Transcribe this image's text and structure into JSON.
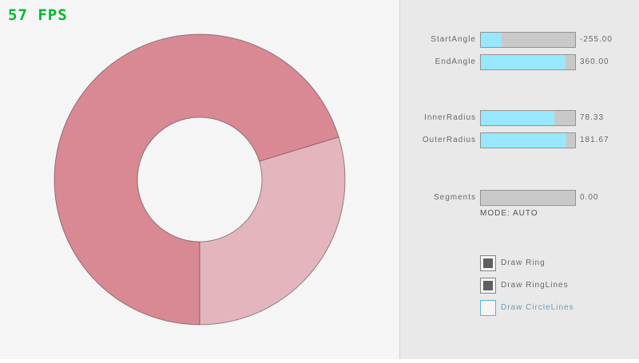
{
  "fps": {
    "text": "57 FPS",
    "color": "#00b830"
  },
  "ring": {
    "start_angle": -255.0,
    "end_angle": 360.0,
    "inner_radius": 78.33,
    "outer_radius": 181.67,
    "segments": 0,
    "colors": {
      "dark": "#d98994",
      "light": "#e4b5bc",
      "hole": "#f5f5f5",
      "outline": "rgba(0,0,0,0.38)"
    }
  },
  "panel": {
    "sliders": [
      {
        "label": "StartAngle",
        "value": "-255.00",
        "fill_pct": 22
      },
      {
        "label": "EndAngle",
        "value": "360.00",
        "fill_pct": 90
      },
      {
        "label": "InnerRadius",
        "value": "78.33",
        "fill_pct": 78
      },
      {
        "label": "OuterRadius",
        "value": "181.67",
        "fill_pct": 91
      },
      {
        "label": "Segments",
        "value": "0.00",
        "fill_pct": 0
      }
    ],
    "mode_text": "MODE: AUTO",
    "checkboxes": [
      {
        "label": "Draw Ring",
        "checked": true,
        "state": "normal"
      },
      {
        "label": "Draw RingLines",
        "checked": true,
        "state": "normal"
      },
      {
        "label": "Draw CircleLines",
        "checked": false,
        "state": "focused"
      }
    ]
  }
}
